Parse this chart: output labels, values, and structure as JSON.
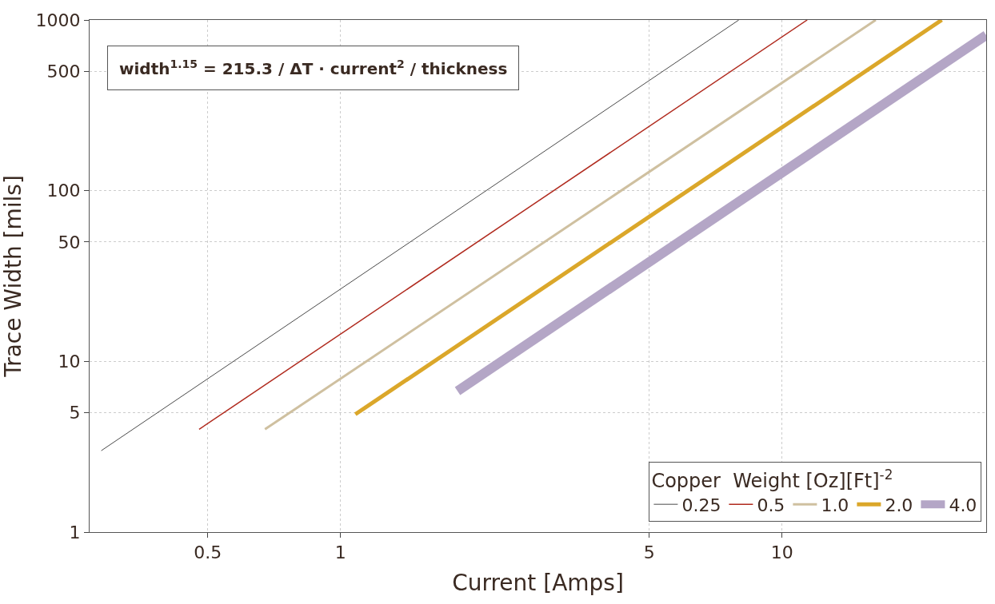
{
  "chart_data": {
    "type": "line",
    "xlabel": "Current [Amps]",
    "ylabel": "Trace Width [mils]",
    "log": "xy",
    "xlim": [
      0.27,
      29
    ],
    "ylim": [
      1,
      1000
    ],
    "xticks": [
      0.5,
      1,
      5,
      10
    ],
    "yticks": [
      1,
      5,
      10,
      50,
      100,
      500,
      1000
    ],
    "grid": true,
    "legend": "bottom right",
    "legend_title": "Copper  Weight [Oz][Ft]$^{-2}$",
    "marker": "none",
    "line_style": "solid",
    "annotations": [
      "width$^{1.15}$ = 215.3 / ΔT · current$^{2}$ / thickness"
    ],
    "series": [
      {
        "name": "0.25",
        "color": "#4a4a4a",
        "x": [
          0.287,
          7.98
        ],
        "values": [
          3.0,
          1000
        ]
      },
      {
        "name": "0.5",
        "color": "#b02a1e",
        "x": [
          0.478,
          11.4
        ],
        "values": [
          4.0,
          1000
        ]
      },
      {
        "name": "1.0",
        "color": "#cfc0a0",
        "x": [
          0.674,
          16.3
        ],
        "values": [
          4.0,
          1000
        ]
      },
      {
        "name": "2.0",
        "color": "#dba72a",
        "x": [
          1.08,
          23
        ],
        "values": [
          4.9,
          1000
        ]
      },
      {
        "name": "4.0",
        "color": "#b4a6c6",
        "x": [
          1.84,
          29
        ],
        "values": [
          6.7,
          815
        ]
      }
    ]
  }
}
